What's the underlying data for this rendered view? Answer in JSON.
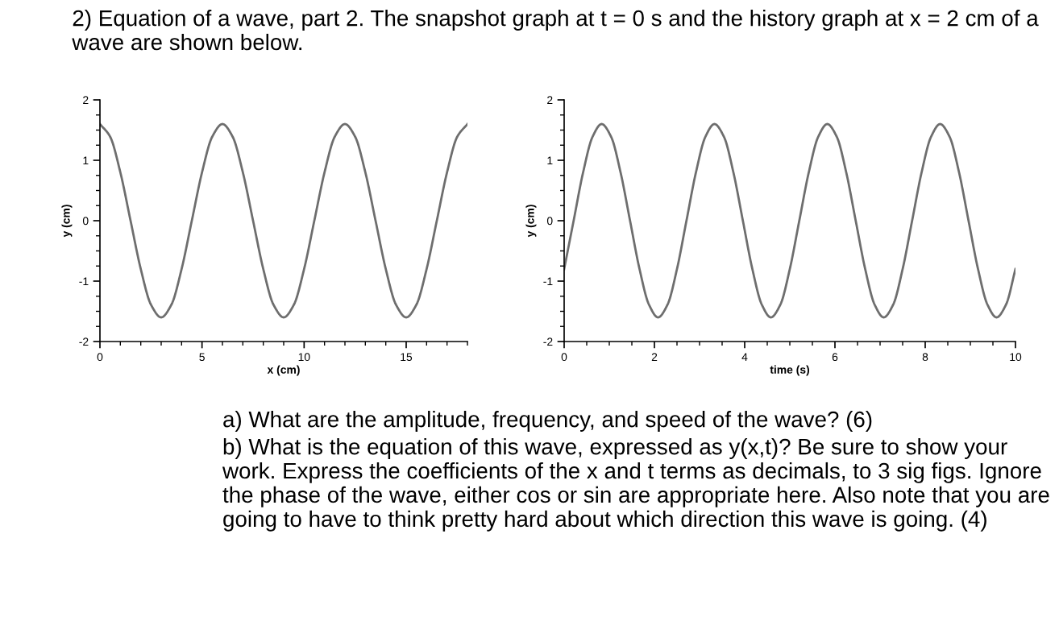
{
  "chart_data": [
    {
      "type": "line",
      "title": "2) Equation of a wave, part 2. The snapshot graph at t = 0 s and the history graph at x = 2 cm of a wave are shown below.",
      "xlabel": "x (cm)",
      "ylabel": "y (cm)",
      "xlim": [
        0,
        18
      ],
      "xticks": [
        0,
        5,
        10,
        15
      ],
      "ylim": [
        -2,
        2
      ],
      "yticks": [
        -2,
        -1,
        0,
        1,
        2
      ],
      "grid": false,
      "legend": false,
      "series": [
        {
          "color": "#6e6e6e",
          "x": [
            0,
            0.5,
            1,
            1.5,
            2,
            2.5,
            3,
            3.5,
            4,
            4.5,
            5,
            5.5,
            6,
            6.5,
            7,
            7.5,
            8,
            8.5,
            9,
            9.5,
            10,
            10.5,
            11,
            11.5,
            12,
            12.5,
            13,
            13.5,
            14,
            14.5,
            15,
            15.5,
            16,
            16.5,
            17,
            17.5,
            18
          ],
          "values": [
            1.6,
            1.39,
            0.8,
            0,
            -0.8,
            -1.39,
            -1.6,
            -1.39,
            -0.8,
            0,
            0.8,
            1.39,
            1.6,
            1.39,
            0.8,
            0,
            -0.8,
            -1.39,
            -1.6,
            -1.39,
            -0.8,
            0,
            0.8,
            1.39,
            1.6,
            1.39,
            0.8,
            0,
            -0.8,
            -1.39,
            -1.6,
            -1.39,
            -0.8,
            0,
            0.8,
            1.39,
            1.6
          ]
        }
      ]
    },
    {
      "type": "line",
      "xlabel": "time (s)",
      "ylabel": "y (cm)",
      "xlim": [
        0,
        10
      ],
      "xticks": [
        0,
        2,
        4,
        6,
        8,
        10
      ],
      "ylim": [
        -2,
        2
      ],
      "yticks": [
        -2,
        -1,
        0,
        1,
        2
      ],
      "grid": false,
      "legend": false,
      "annotations": [
        "a) What are the amplitude, frequency, and speed of the wave? (6)",
        "b) What is the equation of this wave, expressed as y(x,t)? Be sure to show your work. Express the coefficients of the x and t terms as decimals, to 3 sig figs. Ignore the phase of the wave, either cos or sin are appropriate here. Also note that you are going to have to think pretty hard about which direction this wave is going. (4)"
      ],
      "series": [
        {
          "color": "#6e6e6e",
          "x": [
            0,
            0.21,
            0.42,
            0.63,
            0.83,
            1.04,
            1.25,
            1.46,
            1.67,
            1.88,
            2.08,
            2.29,
            2.5,
            2.71,
            2.92,
            3.13,
            3.33,
            3.54,
            3.75,
            3.96,
            4.17,
            4.38,
            4.58,
            4.79,
            5,
            5.21,
            5.42,
            5.63,
            5.83,
            6.04,
            6.25,
            6.46,
            6.67,
            6.88,
            7.08,
            7.29,
            7.5,
            7.71,
            7.92,
            8.13,
            8.33,
            8.54,
            8.75,
            8.96,
            9.17,
            9.38,
            9.58,
            9.79,
            10
          ],
          "values": [
            -0.8,
            0,
            0.8,
            1.39,
            1.6,
            1.39,
            0.8,
            0,
            -0.8,
            -1.39,
            -1.6,
            -1.39,
            -0.8,
            0,
            0.8,
            1.39,
            1.6,
            1.39,
            0.8,
            0,
            -0.8,
            -1.39,
            -1.6,
            -1.39,
            -0.8,
            0,
            0.8,
            1.39,
            1.6,
            1.39,
            0.8,
            0,
            -0.8,
            -1.39,
            -1.6,
            -1.39,
            -0.8,
            0,
            0.8,
            1.39,
            1.6,
            1.39,
            0.8,
            0,
            -0.8,
            -1.39,
            -1.6,
            -1.39,
            -0.8
          ]
        }
      ]
    }
  ]
}
